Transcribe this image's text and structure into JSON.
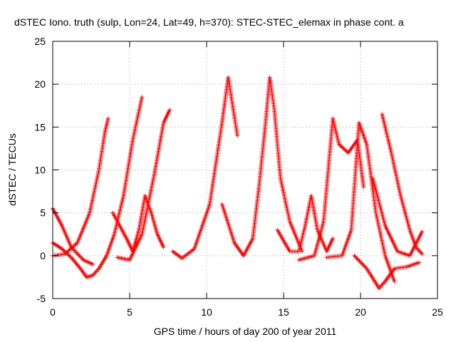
{
  "chart_data": {
    "type": "scatter",
    "title": "dSTEC Iono. truth (sulp, Lon=24, Lat=49, h=370): STEC-STEC_elemax in phase cont. a",
    "xlabel": "GPS time / hours of day 200 of year 2011",
    "ylabel": "dSTEC  / TECUs",
    "xlim": [
      0,
      25
    ],
    "ylim": [
      -5,
      25
    ],
    "xticks": [
      "0",
      "5",
      "10",
      "15",
      "20",
      "25"
    ],
    "yticks": [
      "-5",
      "0",
      "5",
      "10",
      "15",
      "20",
      "25"
    ],
    "grid": true,
    "marker": "+",
    "color": "#ff0000",
    "series": [
      {
        "x": [
          0.0,
          0.8,
          1.6,
          2.4,
          3.0,
          3.4,
          3.6
        ],
        "y": [
          0.0,
          0.2,
          1.5,
          5.0,
          10.0,
          14.5,
          16.0
        ]
      },
      {
        "x": [
          3.9,
          4.8,
          5.2,
          5.6,
          6.0,
          6.4,
          6.8,
          7.2
        ],
        "y": [
          5.0,
          2.0,
          0.5,
          3.0,
          7.0,
          5.0,
          2.5,
          1.0
        ]
      },
      {
        "x": [
          0.0,
          0.6,
          1.2,
          1.8,
          2.2,
          2.6,
          3.0,
          3.5,
          4.0,
          4.6,
          5.2,
          5.8
        ],
        "y": [
          1.5,
          0.8,
          -0.2,
          -1.5,
          -2.5,
          -2.3,
          -1.5,
          0.0,
          2.5,
          7.0,
          13.5,
          18.5
        ]
      },
      {
        "x": [
          0.0,
          0.6,
          1.2,
          2.0,
          2.6
        ],
        "y": [
          5.5,
          3.5,
          1.0,
          -0.5,
          -1.0
        ]
      },
      {
        "x": [
          4.2,
          5.0,
          5.8,
          6.6,
          7.2,
          7.6
        ],
        "y": [
          -0.2,
          -0.5,
          2.5,
          9.5,
          15.5,
          17.0
        ]
      },
      {
        "x": [
          7.8,
          8.4,
          9.2,
          10.2,
          11.0,
          11.4,
          12.0
        ],
        "y": [
          0.5,
          -0.3,
          0.8,
          6.0,
          15.5,
          20.8,
          14.0
        ]
      },
      {
        "x": [
          11.0,
          11.8,
          12.4,
          13.0,
          13.4,
          13.8,
          14.1,
          14.4,
          14.8,
          15.4,
          16.2
        ],
        "y": [
          6.0,
          1.5,
          0.0,
          2.0,
          8.0,
          15.0,
          20.8,
          17.0,
          9.0,
          4.0,
          0.5
        ]
      },
      {
        "x": [
          14.6,
          15.4,
          16.0,
          16.4,
          16.8,
          17.2,
          17.8,
          18.2
        ],
        "y": [
          3.0,
          0.5,
          0.5,
          3.5,
          7.0,
          3.0,
          0.5,
          2.0
        ]
      },
      {
        "x": [
          16.0,
          17.0,
          17.6,
          18.2,
          18.6,
          19.2,
          19.8,
          20.2
        ],
        "y": [
          -0.5,
          0.0,
          4.0,
          16.0,
          13.0,
          12.0,
          13.5,
          8.0
        ]
      },
      {
        "x": [
          17.8,
          18.8,
          19.4,
          19.9,
          20.4,
          21.0,
          21.6,
          22.2
        ],
        "y": [
          -0.2,
          0.0,
          3.0,
          15.5,
          13.0,
          5.0,
          0.0,
          -3.0
        ]
      },
      {
        "x": [
          21.4,
          22.0,
          22.6,
          23.2,
          23.6,
          24.0
        ],
        "y": [
          16.5,
          12.0,
          7.0,
          3.0,
          1.0,
          0.2
        ]
      },
      {
        "x": [
          19.6,
          20.4,
          21.2,
          21.6,
          22.2,
          23.0,
          23.8
        ],
        "y": [
          0.0,
          -1.5,
          -3.8,
          -3.0,
          -1.5,
          -1.3,
          -0.8
        ]
      },
      {
        "x": [
          20.8,
          21.6,
          22.4,
          23.2,
          24.0
        ],
        "y": [
          9.0,
          3.5,
          0.5,
          0.0,
          2.8
        ]
      }
    ]
  }
}
